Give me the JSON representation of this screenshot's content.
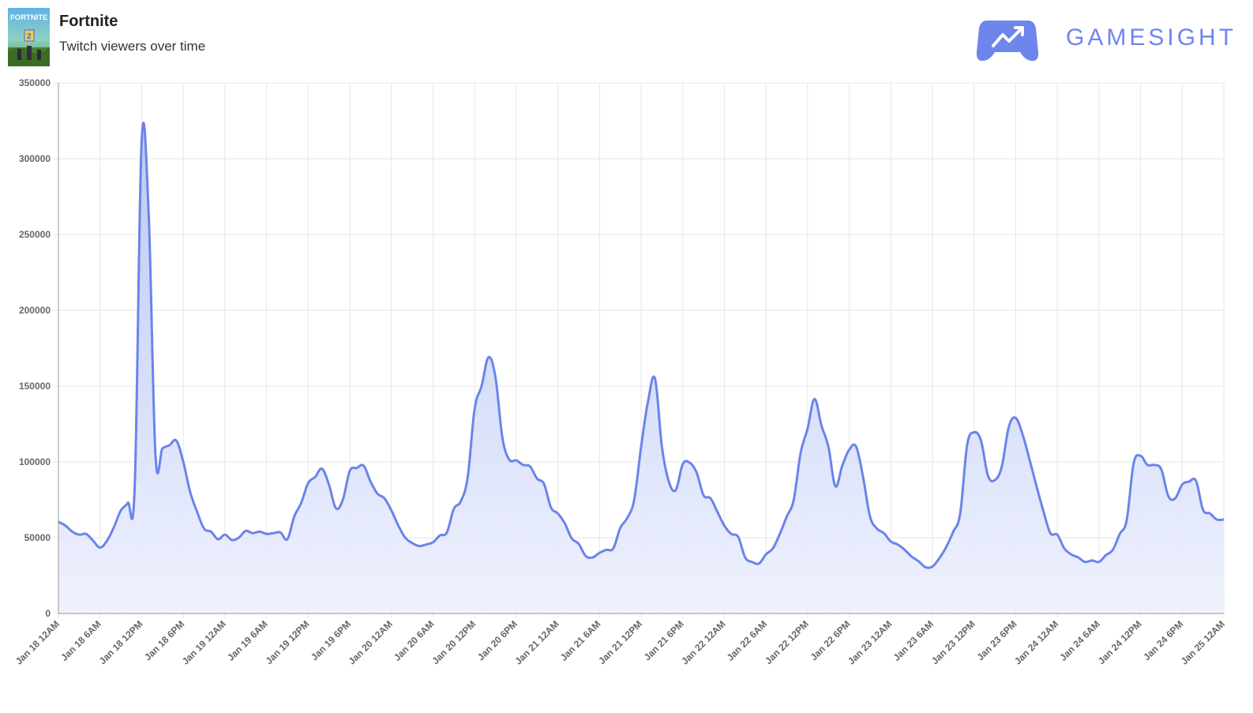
{
  "header": {
    "game_title": "Fortnite",
    "game_subtitle": "Twitch viewers over time",
    "thumbnail_text": "FORTNITE",
    "thumbnail_badge": "2",
    "brand": "GAMESIGHT",
    "logo_icon": "gamepad-trend-icon"
  },
  "colors": {
    "line": "#6a84ea",
    "fill_top": "#b9c6f5",
    "fill_bottom": "#eef1fd",
    "grid": "#e6e6e6",
    "axis": "#999999"
  },
  "chart_data": {
    "type": "area",
    "title": "",
    "xlabel": "",
    "ylabel": "",
    "ylim": [
      0,
      350000
    ],
    "yticks": [
      0,
      50000,
      100000,
      150000,
      200000,
      250000,
      300000,
      350000
    ],
    "xticks": [
      "Jan 18 12AM",
      "Jan 18 6AM",
      "Jan 18 12PM",
      "Jan 18 6PM",
      "Jan 19 12AM",
      "Jan 19 6AM",
      "Jan 19 12PM",
      "Jan 19 6PM",
      "Jan 20 12AM",
      "Jan 20 6AM",
      "Jan 20 12PM",
      "Jan 20 6PM",
      "Jan 21 12AM",
      "Jan 21 6AM",
      "Jan 21 12PM",
      "Jan 21 6PM",
      "Jan 22 12AM",
      "Jan 22 6AM",
      "Jan 22 12PM",
      "Jan 22 6PM",
      "Jan 23 12AM",
      "Jan 23 6AM",
      "Jan 23 12PM",
      "Jan 23 6PM",
      "Jan 24 12AM",
      "Jan 24 6AM",
      "Jan 24 12PM",
      "Jan 24 6PM",
      "Jan 25 12AM"
    ],
    "x_unit": "hours since Jan 18 12AM",
    "grid": true,
    "legend": "none",
    "series": [
      {
        "values": [
          [
            0,
            60500
          ],
          [
            1,
            58000
          ],
          [
            2,
            54000
          ],
          [
            3,
            52000
          ],
          [
            4,
            52500
          ],
          [
            5,
            48000
          ],
          [
            6,
            43500
          ],
          [
            7,
            48000
          ],
          [
            8,
            57000
          ],
          [
            9,
            68000
          ],
          [
            10,
            73000
          ],
          [
            11,
            84000
          ],
          [
            12,
            312000
          ],
          [
            13,
            265000
          ],
          [
            14,
            104000
          ],
          [
            15,
            109000
          ],
          [
            16,
            111000
          ],
          [
            17,
            114000
          ],
          [
            18,
            100000
          ],
          [
            19,
            80000
          ],
          [
            20,
            67000
          ],
          [
            21,
            56000
          ],
          [
            22,
            54000
          ],
          [
            23,
            49000
          ],
          [
            24,
            52000
          ],
          [
            25,
            48500
          ],
          [
            26,
            50000
          ],
          [
            27,
            54500
          ],
          [
            28,
            53000
          ],
          [
            29,
            54000
          ],
          [
            30,
            52500
          ],
          [
            31,
            53000
          ],
          [
            32,
            53500
          ],
          [
            33,
            49000
          ],
          [
            34,
            64000
          ],
          [
            35,
            73000
          ],
          [
            36,
            86000
          ],
          [
            37,
            90000
          ],
          [
            38,
            95500
          ],
          [
            39,
            85000
          ],
          [
            40,
            69500
          ],
          [
            41,
            75000
          ],
          [
            42,
            94000
          ],
          [
            43,
            96000
          ],
          [
            44,
            97500
          ],
          [
            45,
            87000
          ],
          [
            46,
            79000
          ],
          [
            47,
            76000
          ],
          [
            48,
            68000
          ],
          [
            49,
            58000
          ],
          [
            50,
            50000
          ],
          [
            51,
            46500
          ],
          [
            52,
            44500
          ],
          [
            53,
            45500
          ],
          [
            54,
            47000
          ],
          [
            55,
            51500
          ],
          [
            56,
            53500
          ],
          [
            57,
            69000
          ],
          [
            58,
            74000
          ],
          [
            59,
            90000
          ],
          [
            60,
            135000
          ],
          [
            61,
            150000
          ],
          [
            62,
            169000
          ],
          [
            63,
            156000
          ],
          [
            64,
            116000
          ],
          [
            65,
            101500
          ],
          [
            66,
            101000
          ],
          [
            67,
            98000
          ],
          [
            68,
            97000
          ],
          [
            69,
            89000
          ],
          [
            70,
            85500
          ],
          [
            71,
            70000
          ],
          [
            72,
            66000
          ],
          [
            73,
            59500
          ],
          [
            74,
            49500
          ],
          [
            75,
            46000
          ],
          [
            76,
            38000
          ],
          [
            77,
            37000
          ],
          [
            78,
            40000
          ],
          [
            79,
            42000
          ],
          [
            80,
            43000
          ],
          [
            81,
            56500
          ],
          [
            82,
            63000
          ],
          [
            83,
            75000
          ],
          [
            84,
            110000
          ],
          [
            85,
            140000
          ],
          [
            86,
            155000
          ],
          [
            87,
            110000
          ],
          [
            88,
            87000
          ],
          [
            89,
            81500
          ],
          [
            90,
            98500
          ],
          [
            91,
            99500
          ],
          [
            92,
            93000
          ],
          [
            93,
            78000
          ],
          [
            94,
            76000
          ],
          [
            95,
            67000
          ],
          [
            96,
            58000
          ],
          [
            97,
            52500
          ],
          [
            98,
            50500
          ],
          [
            99,
            37000
          ],
          [
            100,
            34000
          ],
          [
            101,
            33000
          ],
          [
            102,
            39000
          ],
          [
            103,
            43000
          ],
          [
            104,
            52500
          ],
          [
            105,
            64000
          ],
          [
            106,
            75000
          ],
          [
            107,
            106000
          ],
          [
            108,
            122000
          ],
          [
            109,
            141500
          ],
          [
            110,
            124000
          ],
          [
            111,
            110000
          ],
          [
            112,
            84000
          ],
          [
            113,
            97500
          ],
          [
            114,
            108000
          ],
          [
            115,
            110000
          ],
          [
            116,
            90000
          ],
          [
            117,
            64000
          ],
          [
            118,
            56000
          ],
          [
            119,
            53000
          ],
          [
            120,
            47500
          ],
          [
            121,
            45500
          ],
          [
            122,
            42000
          ],
          [
            123,
            37500
          ],
          [
            124,
            34500
          ],
          [
            125,
            30500
          ],
          [
            126,
            31000
          ],
          [
            127,
            36500
          ],
          [
            128,
            44000
          ],
          [
            129,
            54000
          ],
          [
            130,
            66000
          ],
          [
            131,
            111000
          ],
          [
            132,
            119500
          ],
          [
            133,
            114000
          ],
          [
            134,
            91000
          ],
          [
            135,
            88000
          ],
          [
            136,
            97000
          ],
          [
            137,
            123000
          ],
          [
            138,
            129000
          ],
          [
            139,
            118000
          ],
          [
            140,
            101500
          ],
          [
            141,
            84000
          ],
          [
            142,
            67500
          ],
          [
            143,
            53000
          ],
          [
            144,
            52000
          ],
          [
            145,
            43000
          ],
          [
            146,
            39000
          ],
          [
            147,
            37000
          ],
          [
            148,
            34000
          ],
          [
            149,
            35000
          ],
          [
            150,
            34000
          ],
          [
            151,
            38500
          ],
          [
            152,
            42000
          ],
          [
            153,
            52500
          ],
          [
            154,
            61500
          ],
          [
            155,
            99000
          ],
          [
            156,
            104000
          ],
          [
            157,
            98000
          ],
          [
            158,
            98000
          ],
          [
            159,
            95000
          ],
          [
            160,
            77500
          ],
          [
            161,
            76000
          ],
          [
            162,
            85000
          ],
          [
            163,
            87000
          ],
          [
            164,
            87500
          ],
          [
            165,
            68500
          ],
          [
            166,
            66000
          ],
          [
            167,
            62000
          ],
          [
            168,
            62000
          ]
        ]
      }
    ]
  }
}
